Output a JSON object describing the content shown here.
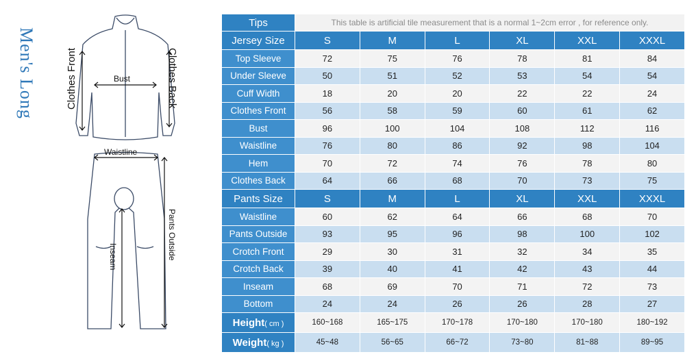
{
  "side_title": "Men's Long",
  "figure_labels": {
    "clothes_front": "Clothes Front",
    "clothes_back": "Clothes Back",
    "bust": "Bust",
    "waistline": "Waistline",
    "pants_outside": "Pants Outside",
    "inseam": "Inseam"
  },
  "tips": {
    "label": "Tips",
    "text": "This table is artificial tile measurement that is a normal 1~2cm error , for reference only."
  },
  "jersey": {
    "header": "Jersey Size",
    "sizes": [
      "S",
      "M",
      "L",
      "XL",
      "XXL",
      "XXXL"
    ],
    "rows": [
      {
        "label": "Top Sleeve",
        "values": [
          "72",
          "75",
          "76",
          "78",
          "81",
          "84"
        ]
      },
      {
        "label": "Under Sleeve",
        "values": [
          "50",
          "51",
          "52",
          "53",
          "54",
          "54"
        ]
      },
      {
        "label": "Cuff Width",
        "values": [
          "18",
          "20",
          "20",
          "22",
          "22",
          "24"
        ]
      },
      {
        "label": "Clothes Front",
        "values": [
          "56",
          "58",
          "59",
          "60",
          "61",
          "62"
        ]
      },
      {
        "label": "Bust",
        "values": [
          "96",
          "100",
          "104",
          "108",
          "112",
          "116"
        ]
      },
      {
        "label": "Waistline",
        "values": [
          "76",
          "80",
          "86",
          "92",
          "98",
          "104"
        ]
      },
      {
        "label": "Hem",
        "values": [
          "70",
          "72",
          "74",
          "76",
          "78",
          "80"
        ]
      },
      {
        "label": "Clothes Back",
        "values": [
          "64",
          "66",
          "68",
          "70",
          "73",
          "75"
        ]
      }
    ]
  },
  "pants": {
    "header": "Pants Size",
    "sizes": [
      "S",
      "M",
      "L",
      "XL",
      "XXL",
      "XXXL"
    ],
    "rows": [
      {
        "label": "Waistline",
        "values": [
          "60",
          "62",
          "64",
          "66",
          "68",
          "70"
        ]
      },
      {
        "label": "Pants Outside",
        "values": [
          "93",
          "95",
          "96",
          "98",
          "100",
          "102"
        ]
      },
      {
        "label": "Crotch Front",
        "values": [
          "29",
          "30",
          "31",
          "32",
          "34",
          "35"
        ]
      },
      {
        "label": "Crotch Back",
        "values": [
          "39",
          "40",
          "41",
          "42",
          "43",
          "44"
        ]
      },
      {
        "label": "Inseam",
        "values": [
          "68",
          "69",
          "70",
          "71",
          "72",
          "73"
        ]
      },
      {
        "label": "Bottom",
        "values": [
          "24",
          "24",
          "26",
          "26",
          "28",
          "27"
        ]
      }
    ]
  },
  "footer": [
    {
      "label": "Height",
      "unit": "( cm )",
      "values": [
        "160~168",
        "165~175",
        "170~178",
        "170~180",
        "170~180",
        "180~192"
      ]
    },
    {
      "label": "Weight",
      "unit": "( kg )",
      "values": [
        "45~48",
        "56~65",
        "66~72",
        "73~80",
        "81~88",
        "89~95"
      ]
    }
  ],
  "colors": {
    "accent": "#2f82c2",
    "row_light": "#f3f3f3",
    "row_blue": "#c9def0",
    "title": "#2f78b8"
  }
}
